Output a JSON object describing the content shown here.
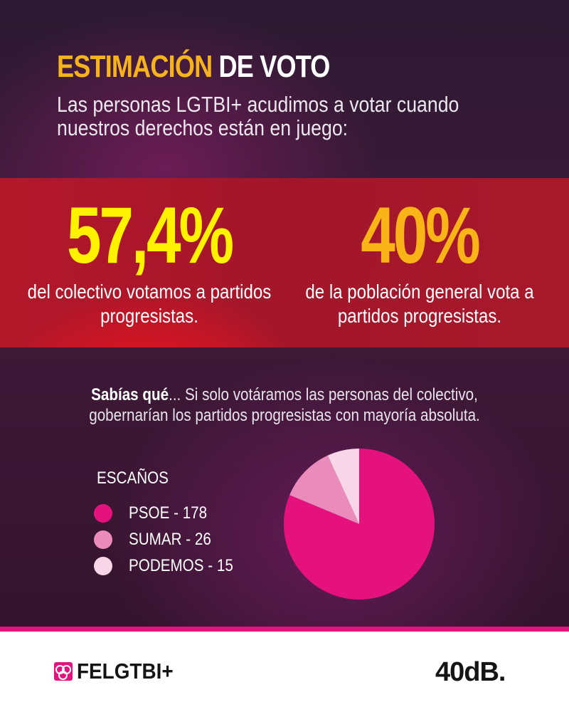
{
  "header": {
    "title_highlight": "ESTIMACIÓN",
    "title_rest": "DE VOTO",
    "subtitle": "Las personas LGTBI+ acudimos a votar cuando nuestros derechos están en juego:"
  },
  "stats": [
    {
      "value": "57,4%",
      "description": "del colectivo votamos a partidos progresistas.",
      "color": "#fff200"
    },
    {
      "value": "40%",
      "description": "de la población general vota a partidos progresistas.",
      "color": "#f9b417"
    }
  ],
  "fact": {
    "lead": "Sabías qué",
    "text": "... Si solo votáramos las personas del colectivo, gobernarían los partidos progresistas con mayoría absoluta."
  },
  "chart_data": {
    "type": "pie",
    "title": "ESCAÑOS",
    "legend_position": "left",
    "series": [
      {
        "label": "PSOE - 178",
        "name": "PSOE",
        "value": 178,
        "color": "#e5127d"
      },
      {
        "label": "SUMAR - 26",
        "name": "SUMAR",
        "value": 26,
        "color": "#ea8bbb"
      },
      {
        "label": "PODEMOS - 15",
        "name": "PODEMOS",
        "value": 15,
        "color": "#f8d6e7"
      }
    ]
  },
  "footer": {
    "org_logo_text": "FELGTBI+",
    "partner_logo_text": "40dB."
  },
  "colors": {
    "accent": "#f6b31c",
    "stripe": "#e5127d"
  }
}
